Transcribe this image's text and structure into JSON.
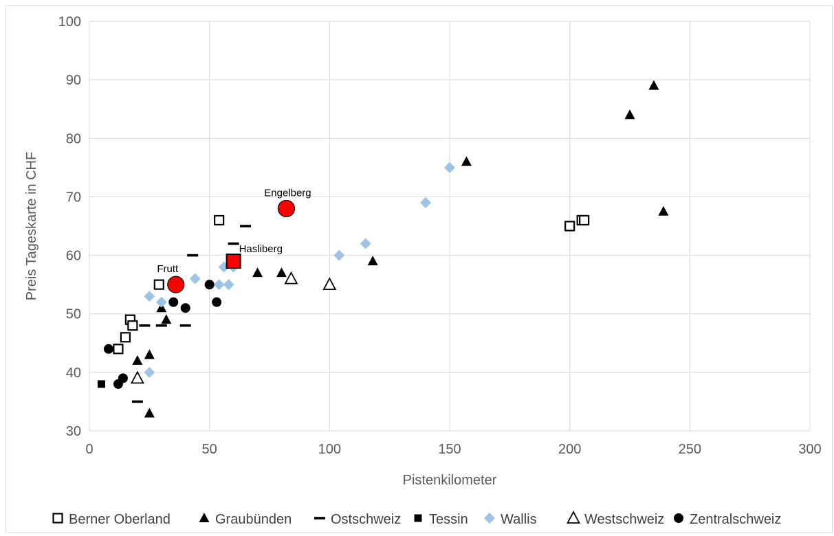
{
  "chart_data": {
    "type": "scatter",
    "title": "",
    "xlabel": "Pistenkilometer",
    "ylabel": "Preis Tageskarte in CHF",
    "xlim": [
      0,
      300
    ],
    "ylim": [
      30,
      100
    ],
    "xticks": [
      0,
      50,
      100,
      150,
      200,
      250,
      300
    ],
    "yticks": [
      30,
      40,
      50,
      60,
      70,
      80,
      90,
      100
    ],
    "grid": true,
    "legend_position": "bottom",
    "series": [
      {
        "name": "Berner Oberland",
        "marker": "open-square",
        "points": [
          [
            12,
            44
          ],
          [
            15,
            46
          ],
          [
            17,
            49
          ],
          [
            18,
            48
          ],
          [
            29,
            55
          ],
          [
            54,
            66
          ],
          [
            200,
            65
          ],
          [
            205,
            66
          ],
          [
            206,
            66
          ]
        ]
      },
      {
        "name": "Graubünden",
        "marker": "filled-triangle",
        "points": [
          [
            20,
            42
          ],
          [
            25,
            43
          ],
          [
            25,
            33
          ],
          [
            30,
            51
          ],
          [
            32,
            49
          ],
          [
            70,
            57
          ],
          [
            80,
            57
          ],
          [
            118,
            59
          ],
          [
            157,
            76
          ],
          [
            225,
            84
          ],
          [
            235,
            89
          ],
          [
            239,
            67.5
          ]
        ]
      },
      {
        "name": "Ostschweiz",
        "marker": "dash",
        "points": [
          [
            20,
            35
          ],
          [
            23,
            48
          ],
          [
            30,
            48
          ],
          [
            40,
            48
          ],
          [
            43,
            60
          ],
          [
            60,
            62
          ],
          [
            65,
            65
          ]
        ]
      },
      {
        "name": "Tessin",
        "marker": "filled-square",
        "points": [
          [
            5,
            38
          ]
        ]
      },
      {
        "name": "Wallis",
        "marker": "diamond",
        "color": "#9dc3e6",
        "points": [
          [
            25,
            40
          ],
          [
            25,
            53
          ],
          [
            30,
            52
          ],
          [
            44,
            56
          ],
          [
            54,
            55
          ],
          [
            56,
            58
          ],
          [
            58,
            55
          ],
          [
            60,
            58
          ],
          [
            104,
            60
          ],
          [
            115,
            62
          ],
          [
            140,
            69
          ],
          [
            150,
            75
          ]
        ]
      },
      {
        "name": "Westschweiz",
        "marker": "open-triangle",
        "points": [
          [
            20,
            39
          ],
          [
            84,
            56
          ],
          [
            100,
            55
          ]
        ]
      },
      {
        "name": "Zentralschweiz",
        "marker": "filled-circle",
        "points": [
          [
            8,
            44
          ],
          [
            12,
            38
          ],
          [
            14,
            39
          ],
          [
            35,
            52
          ],
          [
            40,
            51
          ],
          [
            50,
            55
          ],
          [
            53,
            52
          ]
        ]
      }
    ],
    "highlights": [
      {
        "label": "Engelberg",
        "x": 82,
        "y": 68,
        "marker": "circle",
        "color": "#ff0000"
      },
      {
        "label": "Hasliberg",
        "x": 60,
        "y": 59,
        "marker": "square",
        "color": "#ff0000"
      },
      {
        "label": "Frutt",
        "x": 36,
        "y": 55,
        "marker": "circle",
        "color": "#ff0000"
      }
    ]
  }
}
